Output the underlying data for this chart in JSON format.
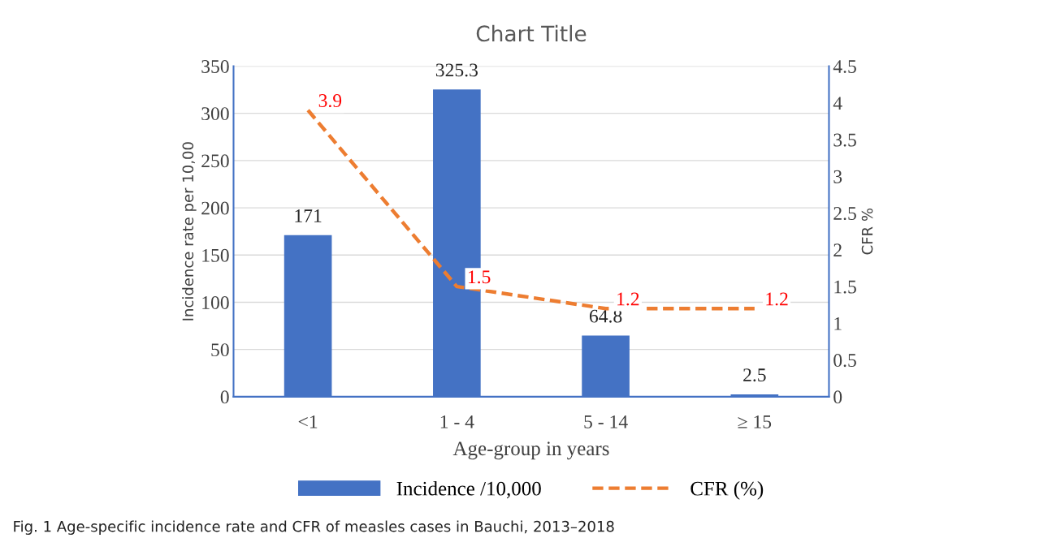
{
  "chart_data": {
    "type": "bar",
    "title": "Chart Title",
    "xlabel": "Age-group in years",
    "ylabel": "Incidence rate per 10,00",
    "y2label": "CFR %",
    "categories": [
      "<1",
      "1 - 4",
      "5 - 14",
      "≥ 15"
    ],
    "series": [
      {
        "name": "Incidence /10,000",
        "color": "#4472c4",
        "values": [
          171,
          325.3,
          64.8,
          2.5
        ]
      },
      {
        "name": "CFR (%)",
        "type": "line",
        "axis": "y2",
        "color": "#ed7d31",
        "line_style": "dashed",
        "values": [
          3.9,
          1.5,
          1.2,
          1.2
        ]
      }
    ],
    "ylim": [
      0,
      350
    ],
    "yticks": [
      0,
      50,
      100,
      150,
      200,
      250,
      300,
      350
    ],
    "y2lim": [
      0,
      4.5
    ],
    "y2ticks": [
      0,
      0.5,
      1,
      1.5,
      2,
      2.5,
      3,
      3.5,
      4,
      4.5
    ],
    "grid": "y",
    "legend": "bottom",
    "data_labels": true,
    "annotations": [
      "Fig. 1 Age-specific incidence rate and CFR of measles cases in Bauchi, 2013–2018"
    ]
  }
}
